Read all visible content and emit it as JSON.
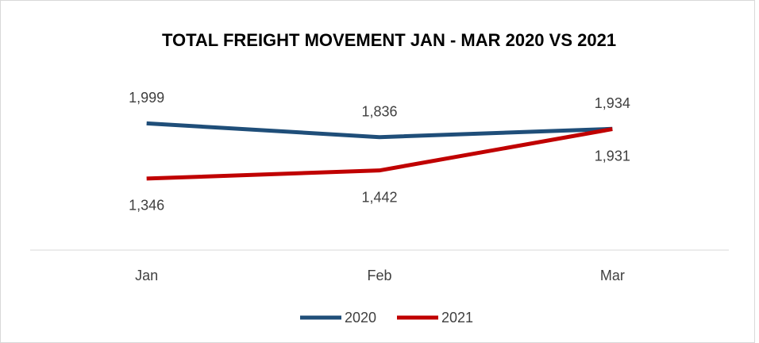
{
  "chart_data": {
    "type": "line",
    "title": "TOTAL FREIGHT MOVEMENT JAN - MAR 2020 VS 2021",
    "categories": [
      "Jan",
      "Feb",
      "Mar"
    ],
    "series": [
      {
        "name": "2020",
        "color": "#1f4e79",
        "values": [
          1999,
          1836,
          1934
        ],
        "value_labels": [
          "1,999",
          "1,836",
          "1,934"
        ]
      },
      {
        "name": "2021",
        "color": "#c00000",
        "values": [
          1346,
          1442,
          1931
        ],
        "value_labels": [
          "1,346",
          "1,442",
          "1,931"
        ]
      }
    ],
    "ylim": [
      500,
      2500
    ],
    "legend": "bottom"
  }
}
